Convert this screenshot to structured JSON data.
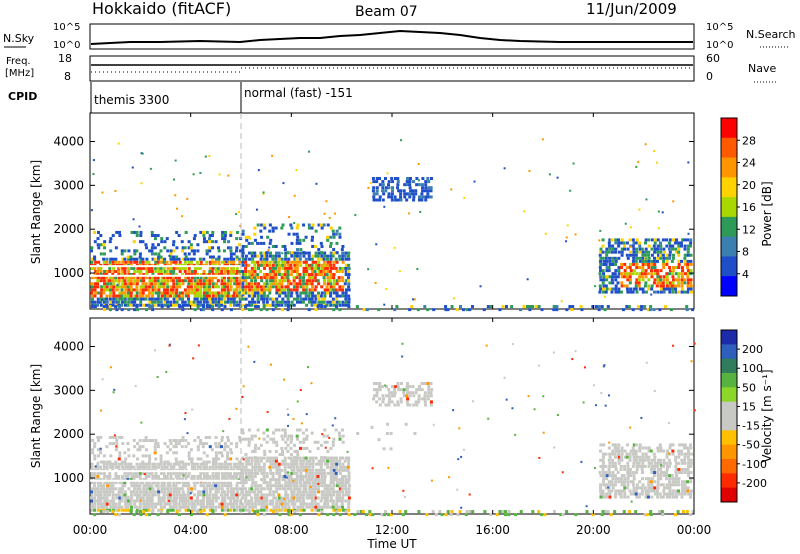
{
  "header": {
    "title": "Hokkaido (fitACF)",
    "beam": "Beam 07",
    "date": "11/Jun/2009"
  },
  "top_panels": {
    "nsky": {
      "label": "N.Sky",
      "ticks": [
        "10^5",
        "10^0"
      ],
      "right_label": "N.Search",
      "right_ticks": [
        "10^5",
        "10^0"
      ]
    },
    "freq": {
      "label_line1": "Freq.",
      "label_line2": "[MHz]",
      "ticks": [
        "18",
        "8"
      ],
      "right_label": "Nave",
      "right_ticks": [
        "60",
        "0"
      ]
    },
    "cpid": {
      "label": "CPID",
      "segments": [
        "themis 3300",
        "normal (fast) -151"
      ]
    }
  },
  "x_axis": {
    "title": "Time UT",
    "ticks": [
      "00:00",
      "04:00",
      "08:00",
      "12:00",
      "16:00",
      "20:00",
      "00:00"
    ]
  },
  "colors": {
    "background": "#ffffff",
    "gray_scatter": "#c8c8c4"
  },
  "chart_data": [
    {
      "type": "heatmap",
      "name": "power-panel",
      "ylabel": "Slant Range [km]",
      "ylim": [
        180,
        4650
      ],
      "yticks": [
        1000,
        2000,
        3000,
        4000
      ],
      "xlim_hours": [
        0,
        24
      ],
      "colorbar": {
        "label": "Power [dB]",
        "ticks": [
          "28",
          "24",
          "20",
          "16",
          "12",
          "8",
          "4"
        ],
        "colors": [
          "#ff0000",
          "#ff5a00",
          "#ff9600",
          "#ffd200",
          "#a8d800",
          "#2e9a57",
          "#3a7fb0",
          "#1f4fc8",
          "#0000ff"
        ]
      }
    },
    {
      "type": "heatmap",
      "name": "velocity-panel",
      "ylabel": "Slant Range [km]",
      "ylim": [
        180,
        4650
      ],
      "yticks": [
        1000,
        2000,
        3000,
        4000
      ],
      "xlim_hours": [
        0,
        24
      ],
      "colorbar": {
        "label": "Velocity [m s⁻¹]",
        "ticks": [
          "200",
          "100",
          "50",
          "15",
          "-15",
          "-50",
          "-100",
          "-200"
        ],
        "colors": [
          "#1c2ca8",
          "#2e5fbd",
          "#2f7d5c",
          "#57b340",
          "#8cd62a",
          "#c8c8c4",
          "#c8c8c4",
          "#ffc000",
          "#ff9600",
          "#ff6a00",
          "#ff2a00",
          "#e00000"
        ]
      }
    }
  ]
}
